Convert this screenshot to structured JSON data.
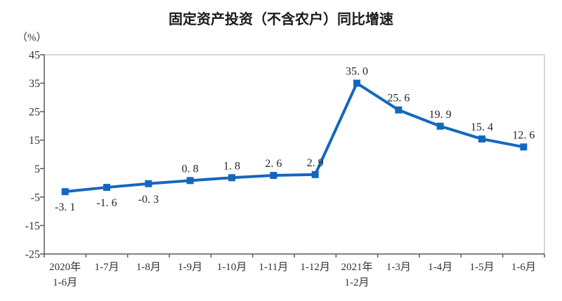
{
  "page": {
    "background": "#ffffff"
  },
  "chart_data": {
    "type": "line",
    "title": "固定资产投资（不含农户）同比增速",
    "unit_label": "（%）",
    "xlabel": "",
    "ylabel": "（%）",
    "categories": [
      "2020年\n1-6月",
      "1-7月",
      "1-8月",
      "1-9月",
      "1-10月",
      "1-11月",
      "1-12月",
      "2021年\n1-2月",
      "1-3月",
      "1-4月",
      "1-5月",
      "1-6月"
    ],
    "values": [
      -3.1,
      -1.6,
      -0.3,
      0.8,
      1.8,
      2.6,
      2.9,
      35.0,
      25.6,
      19.9,
      15.4,
      12.6
    ],
    "point_labels": [
      "-3. 1",
      "-1. 6",
      "-0. 3",
      "0. 8",
      "1. 8",
      "2. 6",
      "2. 9",
      "35. 0",
      "25. 6",
      "19. 9",
      "15. 4",
      "12. 6"
    ],
    "ylim": [
      -25,
      45
    ],
    "yticks": [
      45,
      35,
      25,
      15,
      5,
      -5,
      -15,
      -25
    ],
    "grid": false,
    "legend": "none",
    "line_color": "#1467be",
    "marker": "square",
    "marker_color": "#1467be",
    "axis_color": "#595959",
    "border_color": "#c9c9c9",
    "text_color": "#333333"
  }
}
